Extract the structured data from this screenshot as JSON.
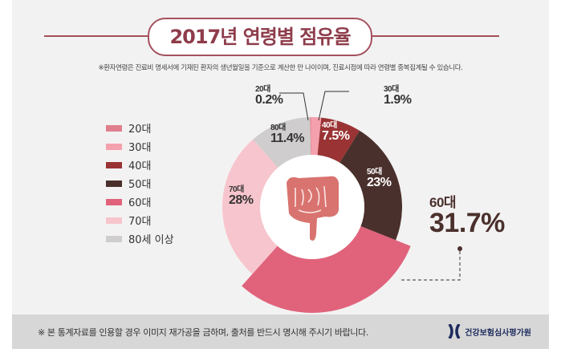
{
  "title": "2017년 연령별 점유율",
  "note": "※환자연령은 진료비 명세서에 기재된 환자의 생년월일을 기준으로 계산한 만 나이이며, 진료시점에 따라 연령별 중복집계될 수 있습니다.",
  "footer": {
    "text": "※ 본 통계자료를 인용할 경우 이미지 재가공을 금하며, 출처를 반드시 명시해 주시기 바랍니다.",
    "logo": "건강보험심사평가원"
  },
  "chart_data": {
    "type": "pie",
    "title": "2017년 연령별 점유율",
    "categories": [
      "20대",
      "30대",
      "40대",
      "50대",
      "60대",
      "70대",
      "80세 이상"
    ],
    "slice_labels": [
      "20대",
      "30대",
      "40대",
      "50대",
      "60대",
      "70대",
      "80대"
    ],
    "values": [
      0.2,
      1.9,
      7.5,
      23,
      31.7,
      28,
      11.4
    ],
    "value_labels": [
      "0.2%",
      "1.9%",
      "7.5%",
      "23%",
      "31.7%",
      "28%",
      "11.4%"
    ],
    "colors": [
      "#df7f8c",
      "#f5a0ad",
      "#9a3334",
      "#4a302c",
      "#e0637b",
      "#f7c5cd",
      "#cfcdcd"
    ],
    "highlight": "60대",
    "legend_position": "left",
    "donut": true
  }
}
